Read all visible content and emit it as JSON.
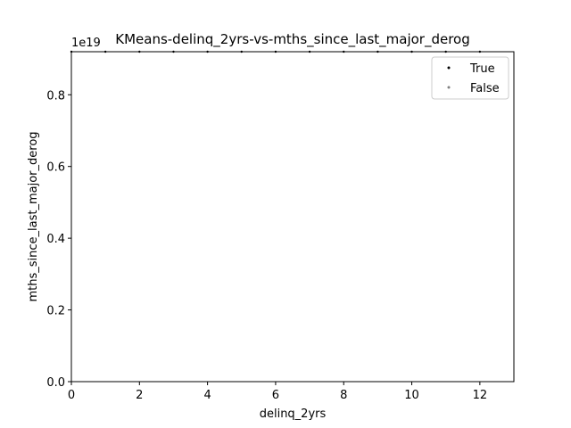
{
  "chart_data": {
    "type": "scatter",
    "title": "KMeans-delinq_2yrs-vs-mths_since_last_major_derog",
    "xlabel": "delinq_2yrs",
    "ylabel": "mths_since_last_major_derog",
    "xlim": [
      0,
      13
    ],
    "ylim": [
      0,
      0.92
    ],
    "y_offset_label": "1e19",
    "x_ticks": [
      0,
      2,
      4,
      6,
      8,
      10,
      12
    ],
    "x_tick_labels": [
      "0",
      "2",
      "4",
      "6",
      "8",
      "10",
      "12"
    ],
    "y_ticks": [
      0.0,
      0.2,
      0.4,
      0.6,
      0.8
    ],
    "y_tick_labels": [
      "0.0",
      "0.2",
      "0.4",
      "0.6",
      "0.8"
    ],
    "legend_position": "upper right",
    "grid": false,
    "series": [
      {
        "name": "True",
        "color": "#000000",
        "x": [
          0,
          1,
          2,
          3,
          4,
          5,
          6,
          7,
          8,
          9,
          10,
          11,
          12
        ],
        "y": [
          0.92,
          0.92,
          0.92,
          0.92,
          0.92,
          0.92,
          0.92,
          0.92,
          0.92,
          0.92,
          0.92,
          0.92,
          0.92
        ]
      },
      {
        "name": "False",
        "color": "#808080",
        "x": [],
        "y": []
      }
    ]
  }
}
